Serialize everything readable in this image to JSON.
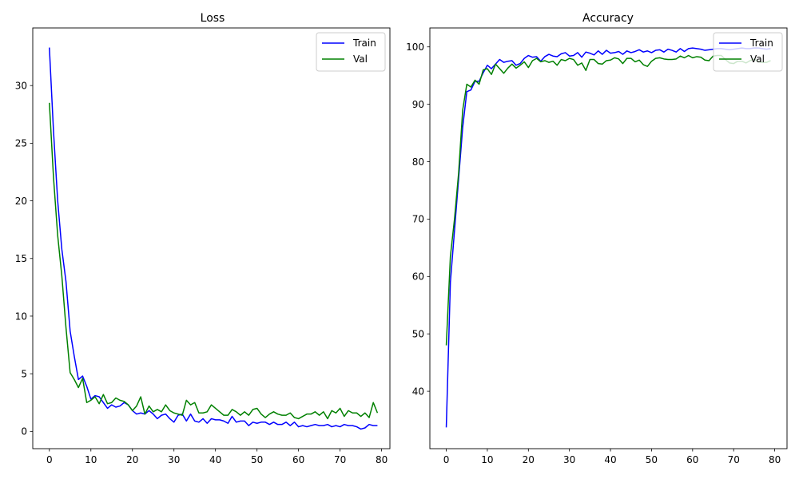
{
  "colors": {
    "train": "#0000ff",
    "val": "#008000",
    "axis": "#000000",
    "legend_border": "#cccccc"
  },
  "chart_data": [
    {
      "type": "line",
      "title": "Loss",
      "xlabel": "",
      "ylabel": "",
      "xlim": [
        -4,
        82
      ],
      "ylim": [
        -1.5,
        35
      ],
      "xticks": [
        0,
        10,
        20,
        30,
        40,
        50,
        60,
        70,
        80
      ],
      "yticks": [
        0,
        5,
        10,
        15,
        20,
        25,
        30
      ],
      "grid": false,
      "legend": "top-right",
      "series": [
        {
          "name": "Train",
          "color": "#0000ff",
          "x": [
            0,
            1,
            2,
            3,
            4,
            5,
            6,
            7,
            8,
            9,
            10,
            11,
            12,
            13,
            14,
            15,
            16,
            17,
            18,
            19,
            20,
            21,
            22,
            23,
            24,
            25,
            26,
            27,
            28,
            29,
            30,
            31,
            32,
            33,
            34,
            35,
            36,
            37,
            38,
            39,
            40,
            41,
            42,
            43,
            44,
            45,
            46,
            47,
            48,
            49,
            50,
            51,
            52,
            53,
            54,
            55,
            56,
            57,
            58,
            59,
            60,
            61,
            62,
            63,
            64,
            65,
            66,
            67,
            68,
            69,
            70,
            71,
            72,
            73,
            74,
            75,
            76,
            77,
            78,
            79
          ],
          "values": [
            33.3,
            26.0,
            20.0,
            15.8,
            13.0,
            8.7,
            6.5,
            4.5,
            4.8,
            3.9,
            2.8,
            3.1,
            3.0,
            2.5,
            2.0,
            2.3,
            2.1,
            2.2,
            2.5,
            2.3,
            1.8,
            1.5,
            1.6,
            1.5,
            1.8,
            1.5,
            1.1,
            1.4,
            1.5,
            1.1,
            0.8,
            1.4,
            1.5,
            0.9,
            1.5,
            0.9,
            0.8,
            1.1,
            0.7,
            1.1,
            1.0,
            1.0,
            0.9,
            0.7,
            1.3,
            0.8,
            0.9,
            0.9,
            0.5,
            0.8,
            0.7,
            0.8,
            0.8,
            0.6,
            0.8,
            0.6,
            0.6,
            0.8,
            0.5,
            0.8,
            0.4,
            0.5,
            0.4,
            0.5,
            0.6,
            0.5,
            0.5,
            0.6,
            0.4,
            0.5,
            0.4,
            0.6,
            0.5,
            0.5,
            0.4,
            0.2,
            0.3,
            0.6,
            0.5,
            0.5
          ]
        },
        {
          "name": "Val",
          "color": "#008000",
          "x": [
            0,
            1,
            2,
            3,
            4,
            5,
            6,
            7,
            8,
            9,
            10,
            11,
            12,
            13,
            14,
            15,
            16,
            17,
            18,
            19,
            20,
            21,
            22,
            23,
            24,
            25,
            26,
            27,
            28,
            29,
            30,
            31,
            32,
            33,
            34,
            35,
            36,
            37,
            38,
            39,
            40,
            41,
            42,
            43,
            44,
            45,
            46,
            47,
            48,
            49,
            50,
            51,
            52,
            53,
            54,
            55,
            56,
            57,
            58,
            59,
            60,
            61,
            62,
            63,
            64,
            65,
            66,
            67,
            68,
            69,
            70,
            71,
            72,
            73,
            74,
            75,
            76,
            77,
            78,
            79
          ],
          "values": [
            28.5,
            22.0,
            17.0,
            13.5,
            9.0,
            5.1,
            4.5,
            3.8,
            4.6,
            2.5,
            2.7,
            3.0,
            2.4,
            3.2,
            2.4,
            2.5,
            2.9,
            2.7,
            2.6,
            2.3,
            1.8,
            2.2,
            3.0,
            1.5,
            2.2,
            1.7,
            1.9,
            1.7,
            2.3,
            1.8,
            1.6,
            1.5,
            1.4,
            2.7,
            2.3,
            2.5,
            1.6,
            1.6,
            1.7,
            2.3,
            2.0,
            1.7,
            1.4,
            1.4,
            1.9,
            1.7,
            1.4,
            1.7,
            1.4,
            1.9,
            2.0,
            1.5,
            1.2,
            1.5,
            1.7,
            1.5,
            1.4,
            1.4,
            1.6,
            1.2,
            1.1,
            1.3,
            1.5,
            1.5,
            1.7,
            1.4,
            1.7,
            1.1,
            1.8,
            1.6,
            2.0,
            1.3,
            1.8,
            1.6,
            1.6,
            1.3,
            1.6,
            1.2,
            2.5,
            1.6
          ]
        }
      ]
    },
    {
      "type": "line",
      "title": "Accuracy",
      "xlabel": "",
      "ylabel": "",
      "xlim": [
        -4,
        83
      ],
      "ylim": [
        30,
        103.3
      ],
      "xticks": [
        0,
        10,
        20,
        30,
        40,
        50,
        60,
        70,
        80
      ],
      "yticks": [
        40,
        50,
        60,
        70,
        80,
        90,
        100
      ],
      "grid": false,
      "legend": "top-right",
      "series": [
        {
          "name": "Train",
          "color": "#0000ff",
          "x": [
            0,
            1,
            2,
            3,
            4,
            5,
            6,
            7,
            8,
            9,
            10,
            11,
            12,
            13,
            14,
            15,
            16,
            17,
            18,
            19,
            20,
            21,
            22,
            23,
            24,
            25,
            26,
            27,
            28,
            29,
            30,
            31,
            32,
            33,
            34,
            35,
            36,
            37,
            38,
            39,
            40,
            41,
            42,
            43,
            44,
            45,
            46,
            47,
            48,
            49,
            50,
            51,
            52,
            53,
            54,
            55,
            56,
            57,
            58,
            59,
            60,
            61,
            62,
            63,
            64,
            65,
            66,
            67,
            68,
            69,
            70,
            71,
            72,
            73,
            74,
            75,
            76,
            77,
            78,
            79
          ],
          "values": [
            33.7,
            59.0,
            68.0,
            77.0,
            86.0,
            92.2,
            92.5,
            94.0,
            94.0,
            95.5,
            96.8,
            96.2,
            97.0,
            97.8,
            97.3,
            97.5,
            97.6,
            96.8,
            97.1,
            98.0,
            98.5,
            98.2,
            98.3,
            97.5,
            98.3,
            98.7,
            98.4,
            98.3,
            98.8,
            99.0,
            98.4,
            98.5,
            99.0,
            98.2,
            99.1,
            98.9,
            98.6,
            99.3,
            98.7,
            99.4,
            98.9,
            99.0,
            99.2,
            98.7,
            99.3,
            99.0,
            99.2,
            99.5,
            99.1,
            99.3,
            99.0,
            99.4,
            99.5,
            99.1,
            99.6,
            99.4,
            99.1,
            99.7,
            99.2,
            99.7,
            99.8,
            99.7,
            99.6,
            99.4,
            99.5,
            99.6,
            99.7,
            99.7,
            99.6,
            99.5,
            99.6,
            99.7,
            99.8,
            99.7,
            99.7,
            99.8,
            99.8,
            99.7,
            99.6,
            99.7
          ]
        },
        {
          "name": "Val",
          "color": "#008000",
          "x": [
            0,
            1,
            2,
            3,
            4,
            5,
            6,
            7,
            8,
            9,
            10,
            11,
            12,
            13,
            14,
            15,
            16,
            17,
            18,
            19,
            20,
            21,
            22,
            23,
            24,
            25,
            26,
            27,
            28,
            29,
            30,
            31,
            32,
            33,
            34,
            35,
            36,
            37,
            38,
            39,
            40,
            41,
            42,
            43,
            44,
            45,
            46,
            47,
            48,
            49,
            50,
            51,
            52,
            53,
            54,
            55,
            56,
            57,
            58,
            59,
            60,
            61,
            62,
            63,
            64,
            65,
            66,
            67,
            68,
            69,
            70,
            71,
            72,
            73,
            74,
            75,
            76,
            77,
            78,
            79
          ],
          "values": [
            48.0,
            63.5,
            70.0,
            78.0,
            89.0,
            93.5,
            93.0,
            94.2,
            93.5,
            96.0,
            96.2,
            95.2,
            97.0,
            96.2,
            95.4,
            96.3,
            97.0,
            96.3,
            96.8,
            97.4,
            96.4,
            97.6,
            98.0,
            97.4,
            97.6,
            97.3,
            97.5,
            96.8,
            97.8,
            97.6,
            98.0,
            97.8,
            96.8,
            97.2,
            95.9,
            97.8,
            97.8,
            97.1,
            97.0,
            97.6,
            97.7,
            98.1,
            97.9,
            97.1,
            98.0,
            98.0,
            97.4,
            97.7,
            96.9,
            96.6,
            97.5,
            98.0,
            98.1,
            97.9,
            97.8,
            97.8,
            97.9,
            98.4,
            98.1,
            98.5,
            98.1,
            98.3,
            98.2,
            97.7,
            97.6,
            98.4,
            98.5,
            98.5,
            97.8,
            97.2,
            97.1,
            97.5,
            97.5,
            97.2,
            97.6,
            97.9,
            97.4,
            97.3,
            97.3,
            97.6
          ]
        }
      ]
    }
  ]
}
